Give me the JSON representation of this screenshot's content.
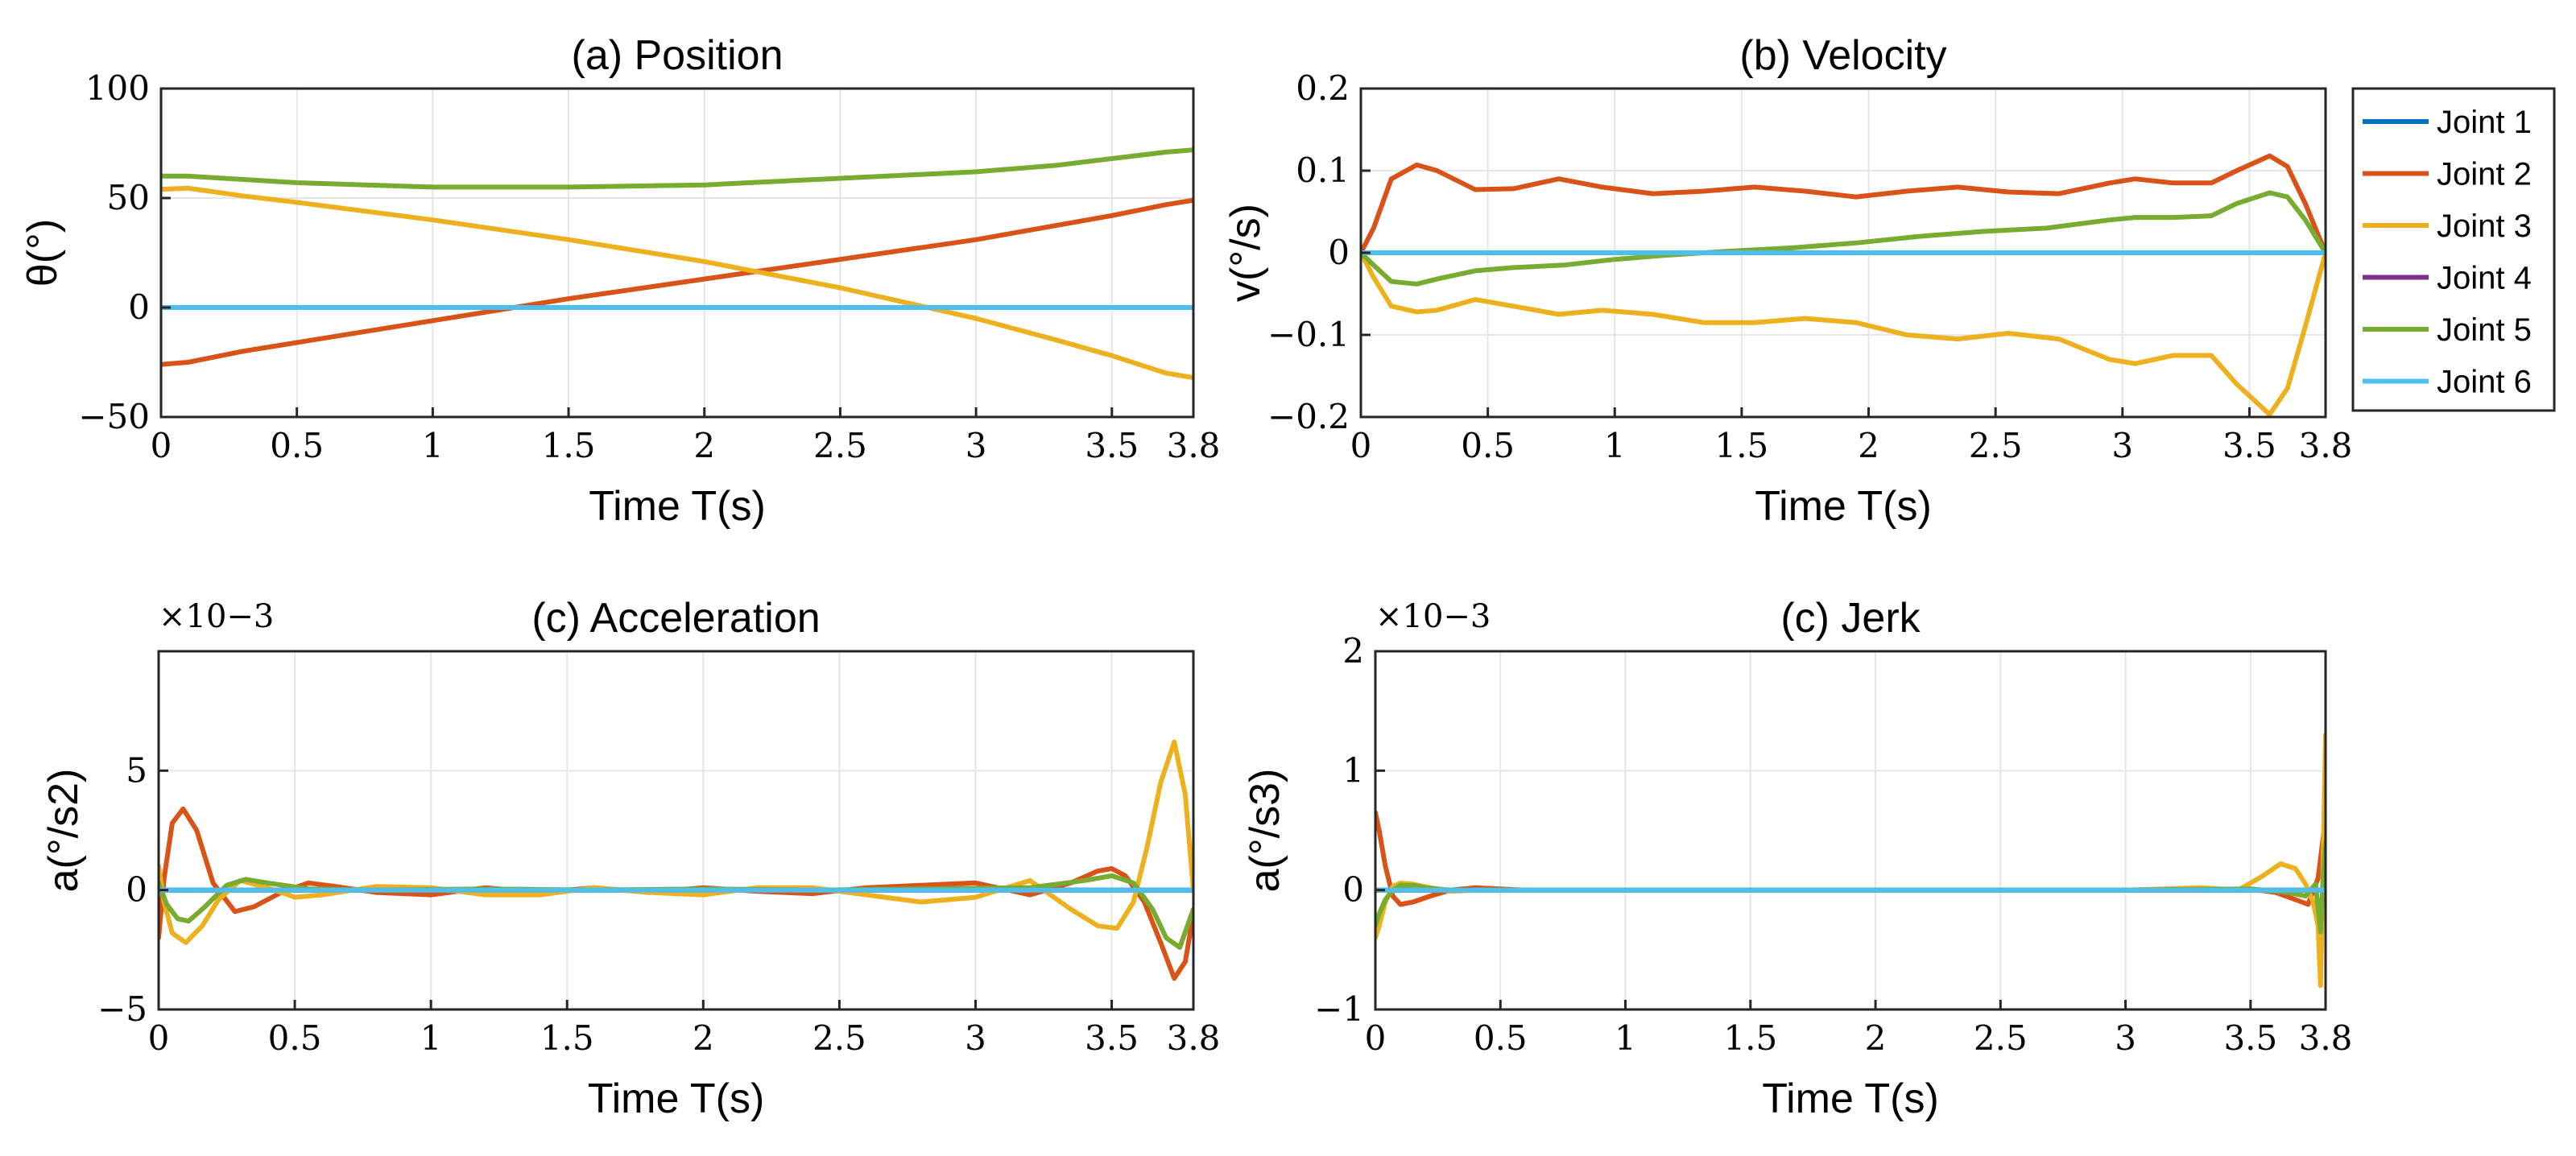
{
  "colors": {
    "joint1": "#0072BD",
    "joint2": "#D95319",
    "joint3": "#EDB120",
    "joint4": "#7E2F8E",
    "joint5": "#77AC30",
    "joint6": "#4DBEEE"
  },
  "legend": {
    "entries": [
      "Joint 1",
      "Joint 2",
      "Joint 3",
      "Joint 4",
      "Joint 5",
      "Joint 6"
    ]
  },
  "chart_data": [
    {
      "type": "line",
      "title": "(a) Position",
      "xlabel": "Time T(s)",
      "ylabel": "θ(°)",
      "xlim": [
        0,
        3.8
      ],
      "ylim": [
        -50,
        100
      ],
      "xticks": [
        0,
        0.5,
        1,
        1.5,
        2,
        2.5,
        3,
        3.5,
        3.8
      ],
      "xtick_labels": [
        "0",
        "0.5",
        "1",
        "1.5",
        "2",
        "2.5",
        "3",
        "3.5",
        "3.8"
      ],
      "yticks": [
        -50,
        0,
        50,
        100
      ],
      "ytick_labels": [
        "−50",
        "0",
        "50",
        "100"
      ],
      "exponent": "",
      "series": [
        {
          "name": "Joint 1",
          "x": [
            0,
            3.8
          ],
          "y": [
            0,
            0
          ]
        },
        {
          "name": "Joint 2",
          "x": [
            0,
            0.1,
            0.3,
            0.5,
            1.0,
            1.5,
            2.0,
            2.5,
            3.0,
            3.5,
            3.7,
            3.8
          ],
          "y": [
            -26,
            -25,
            -20,
            -16,
            -6,
            4,
            13,
            22,
            31,
            42,
            47,
            49
          ]
        },
        {
          "name": "Joint 3",
          "x": [
            0,
            0.1,
            0.3,
            0.5,
            1.0,
            1.5,
            2.0,
            2.5,
            3.0,
            3.3,
            3.5,
            3.7,
            3.8
          ],
          "y": [
            54,
            54.5,
            51,
            48,
            40,
            31,
            21,
            9,
            -5,
            -15,
            -22,
            -30,
            -32
          ]
        },
        {
          "name": "Joint 4",
          "x": [
            0,
            3.8
          ],
          "y": [
            0,
            0
          ]
        },
        {
          "name": "Joint 5",
          "x": [
            0,
            0.1,
            0.5,
            1.0,
            1.5,
            2.0,
            2.5,
            3.0,
            3.3,
            3.5,
            3.7,
            3.8
          ],
          "y": [
            60,
            60,
            57,
            55,
            55,
            56,
            59,
            62,
            65,
            68,
            71,
            72
          ]
        },
        {
          "name": "Joint 6",
          "x": [
            0,
            3.8
          ],
          "y": [
            0,
            0
          ]
        }
      ]
    },
    {
      "type": "line",
      "title": "(b) Velocity",
      "xlabel": "Time T(s)",
      "ylabel": "v(°/s)",
      "xlim": [
        0,
        3.8
      ],
      "ylim": [
        -0.2,
        0.2
      ],
      "xticks": [
        0,
        0.5,
        1,
        1.5,
        2,
        2.5,
        3,
        3.5,
        3.8
      ],
      "xtick_labels": [
        "0",
        "0.5",
        "1",
        "1.5",
        "2",
        "2.5",
        "3",
        "3.5",
        "3.8"
      ],
      "yticks": [
        -0.2,
        -0.1,
        0,
        0.1,
        0.2
      ],
      "ytick_labels": [
        "−0.2",
        "−0.1",
        "0",
        "0.1",
        "0.2"
      ],
      "exponent": "",
      "series": [
        {
          "name": "Joint 1",
          "x": [
            0,
            3.8
          ],
          "y": [
            0,
            0
          ]
        },
        {
          "name": "Joint 2",
          "x": [
            0,
            0.05,
            0.12,
            0.22,
            0.3,
            0.45,
            0.6,
            0.78,
            0.95,
            1.15,
            1.35,
            1.55,
            1.75,
            1.95,
            2.15,
            2.35,
            2.55,
            2.75,
            2.95,
            3.05,
            3.2,
            3.35,
            3.45,
            3.58,
            3.65,
            3.72,
            3.8
          ],
          "y": [
            0,
            0.03,
            0.09,
            0.107,
            0.1,
            0.077,
            0.078,
            0.09,
            0.08,
            0.072,
            0.075,
            0.08,
            0.075,
            0.068,
            0.075,
            0.08,
            0.074,
            0.072,
            0.085,
            0.09,
            0.085,
            0.085,
            0.1,
            0.118,
            0.105,
            0.06,
            0
          ]
        },
        {
          "name": "Joint 3",
          "x": [
            0,
            0.05,
            0.12,
            0.22,
            0.3,
            0.45,
            0.6,
            0.78,
            0.95,
            1.15,
            1.35,
            1.55,
            1.75,
            1.95,
            2.15,
            2.35,
            2.55,
            2.75,
            2.95,
            3.05,
            3.2,
            3.35,
            3.45,
            3.58,
            3.65,
            3.72,
            3.8
          ],
          "y": [
            0,
            -0.03,
            -0.065,
            -0.072,
            -0.07,
            -0.057,
            -0.065,
            -0.075,
            -0.07,
            -0.075,
            -0.085,
            -0.085,
            -0.08,
            -0.085,
            -0.1,
            -0.105,
            -0.098,
            -0.105,
            -0.13,
            -0.135,
            -0.125,
            -0.125,
            -0.16,
            -0.197,
            -0.165,
            -0.09,
            0
          ]
        },
        {
          "name": "Joint 4",
          "x": [
            0,
            3.8
          ],
          "y": [
            0,
            0
          ]
        },
        {
          "name": "Joint 5",
          "x": [
            0,
            0.05,
            0.12,
            0.22,
            0.3,
            0.45,
            0.6,
            0.8,
            1.0,
            1.2,
            1.45,
            1.7,
            1.95,
            2.2,
            2.45,
            2.7,
            2.95,
            3.05,
            3.2,
            3.35,
            3.45,
            3.58,
            3.65,
            3.72,
            3.8
          ],
          "y": [
            0,
            -0.015,
            -0.035,
            -0.038,
            -0.032,
            -0.022,
            -0.018,
            -0.015,
            -0.008,
            -0.003,
            0.002,
            0.006,
            0.012,
            0.02,
            0.026,
            0.03,
            0.04,
            0.043,
            0.043,
            0.045,
            0.06,
            0.073,
            0.068,
            0.04,
            0
          ]
        },
        {
          "name": "Joint 6",
          "x": [
            0,
            3.8
          ],
          "y": [
            0,
            0
          ]
        }
      ]
    },
    {
      "type": "line",
      "title": "(c) Acceleration",
      "xlabel": "Time T(s)",
      "ylabel": "a(°/s2)",
      "xlim": [
        0,
        3.8
      ],
      "ylim": [
        -5,
        10
      ],
      "xticks": [
        0,
        0.5,
        1,
        1.5,
        2,
        2.5,
        3,
        3.5,
        3.8
      ],
      "xtick_labels": [
        "0",
        "0.5",
        "1",
        "1.5",
        "2",
        "2.5",
        "3",
        "3.5",
        "3.8"
      ],
      "yticks": [
        -5,
        0,
        5
      ],
      "ytick_labels": [
        "−5",
        "0",
        "5"
      ],
      "exponent": "×10−3",
      "series": [
        {
          "name": "Joint 1",
          "x": [
            0,
            3.8
          ],
          "y": [
            0,
            0
          ]
        },
        {
          "name": "Joint 2",
          "x": [
            0,
            0.02,
            0.05,
            0.09,
            0.14,
            0.2,
            0.28,
            0.35,
            0.45,
            0.55,
            0.65,
            0.8,
            1.0,
            1.2,
            1.4,
            1.6,
            1.8,
            2.0,
            2.2,
            2.4,
            2.6,
            2.8,
            3.0,
            3.2,
            3.35,
            3.45,
            3.5,
            3.55,
            3.62,
            3.68,
            3.73,
            3.77,
            3.8
          ],
          "y": [
            -2,
            0.5,
            2.8,
            3.4,
            2.5,
            0.3,
            -0.9,
            -0.7,
            -0.1,
            0.3,
            0.15,
            -0.1,
            -0.2,
            0.1,
            -0.1,
            0.1,
            -0.1,
            0.1,
            -0.05,
            -0.15,
            0.1,
            0.2,
            0.3,
            -0.2,
            0.3,
            0.8,
            0.9,
            0.6,
            -0.5,
            -2.2,
            -3.7,
            -3,
            -1
          ]
        },
        {
          "name": "Joint 3",
          "x": [
            0,
            0.02,
            0.05,
            0.1,
            0.16,
            0.22,
            0.3,
            0.4,
            0.5,
            0.6,
            0.8,
            1.0,
            1.2,
            1.4,
            1.6,
            1.8,
            2.0,
            2.2,
            2.4,
            2.6,
            2.8,
            3.0,
            3.2,
            3.35,
            3.45,
            3.52,
            3.58,
            3.63,
            3.68,
            3.73,
            3.77,
            3.8
          ],
          "y": [
            1,
            -0.5,
            -1.8,
            -2.2,
            -1.5,
            -0.4,
            0.4,
            0.1,
            -0.3,
            -0.2,
            0.15,
            0.1,
            -0.2,
            -0.2,
            0.1,
            -0.1,
            -0.2,
            0.1,
            0.1,
            -0.2,
            -0.5,
            -0.3,
            0.4,
            -0.8,
            -1.5,
            -1.6,
            -0.5,
            1.8,
            4.5,
            6.2,
            4,
            0
          ]
        },
        {
          "name": "Joint 4",
          "x": [
            0,
            3.8
          ],
          "y": [
            0,
            0
          ]
        },
        {
          "name": "Joint 5",
          "x": [
            0,
            0.03,
            0.07,
            0.11,
            0.17,
            0.25,
            0.32,
            0.4,
            0.55,
            0.8,
            1.2,
            1.6,
            2.0,
            2.4,
            2.8,
            3.2,
            3.4,
            3.5,
            3.58,
            3.65,
            3.7,
            3.75,
            3.8
          ],
          "y": [
            0.3,
            -0.6,
            -1.2,
            -1.3,
            -0.7,
            0.2,
            0.45,
            0.3,
            0.05,
            0.0,
            0.05,
            0.0,
            0.05,
            0.0,
            0.05,
            0.1,
            0.4,
            0.6,
            0.3,
            -0.8,
            -2.0,
            -2.4,
            -0.8
          ]
        },
        {
          "name": "Joint 6",
          "x": [
            0,
            3.8
          ],
          "y": [
            0,
            0
          ]
        }
      ]
    },
    {
      "type": "line",
      "title": "(c) Jerk",
      "xlabel": "Time T(s)",
      "ylabel": "a(°/s3)",
      "xlim": [
        0,
        3.8
      ],
      "ylim": [
        -1,
        2
      ],
      "xticks": [
        0,
        0.5,
        1,
        1.5,
        2,
        2.5,
        3,
        3.5,
        3.8
      ],
      "xtick_labels": [
        "0",
        "0.5",
        "1",
        "1.5",
        "2",
        "2.5",
        "3",
        "3.5",
        "3.8"
      ],
      "yticks": [
        -1,
        0,
        1,
        2
      ],
      "ytick_labels": [
        "−1",
        "0",
        "1",
        "2"
      ],
      "exponent": "×10−3",
      "series": [
        {
          "name": "Joint 1",
          "x": [
            0,
            3.8
          ],
          "y": [
            0,
            0
          ]
        },
        {
          "name": "Joint 2",
          "x": [
            0,
            0.015,
            0.04,
            0.07,
            0.1,
            0.15,
            0.22,
            0.3,
            0.4,
            0.6,
            1.0,
            1.5,
            2.0,
            2.5,
            3.0,
            3.3,
            3.5,
            3.6,
            3.68,
            3.73,
            3.77,
            3.8
          ],
          "y": [
            0.65,
            0.5,
            0.2,
            -0.05,
            -0.12,
            -0.1,
            -0.05,
            0.0,
            0.02,
            0.0,
            0.0,
            0.0,
            0.0,
            0.0,
            0.0,
            0.0,
            0.01,
            -0.02,
            -0.08,
            -0.12,
            0.1,
            0.6
          ]
        },
        {
          "name": "Joint 3",
          "x": [
            0,
            0.015,
            0.04,
            0.07,
            0.1,
            0.15,
            0.22,
            0.3,
            0.4,
            0.6,
            1.0,
            1.5,
            2.0,
            2.5,
            3.0,
            3.3,
            3.45,
            3.55,
            3.62,
            3.68,
            3.72,
            3.75,
            3.77,
            3.78,
            3.79,
            3.8
          ],
          "y": [
            -0.4,
            -0.3,
            -0.1,
            0.03,
            0.06,
            0.05,
            0.02,
            -0.01,
            0.0,
            0.0,
            0.0,
            0.0,
            0.0,
            0.0,
            0.0,
            0.02,
            0.0,
            0.12,
            0.22,
            0.18,
            0.05,
            -0.1,
            -0.3,
            -0.8,
            0.2,
            1.3
          ]
        },
        {
          "name": "Joint 4",
          "x": [
            0,
            3.8
          ],
          "y": [
            0,
            0
          ]
        },
        {
          "name": "Joint 5",
          "x": [
            0,
            0.015,
            0.04,
            0.07,
            0.1,
            0.15,
            0.2,
            0.3,
            0.5,
            1.0,
            2.0,
            3.0,
            3.5,
            3.65,
            3.72,
            3.76,
            3.78,
            3.79,
            3.8
          ],
          "y": [
            -0.3,
            -0.2,
            -0.08,
            0.0,
            0.04,
            0.04,
            0.02,
            0.0,
            0.0,
            0.0,
            0.0,
            0.0,
            0.01,
            -0.02,
            -0.05,
            0.05,
            -0.35,
            0.1,
            0.4
          ]
        },
        {
          "name": "Joint 6",
          "x": [
            0,
            3.8
          ],
          "y": [
            0,
            0
          ]
        }
      ]
    }
  ]
}
